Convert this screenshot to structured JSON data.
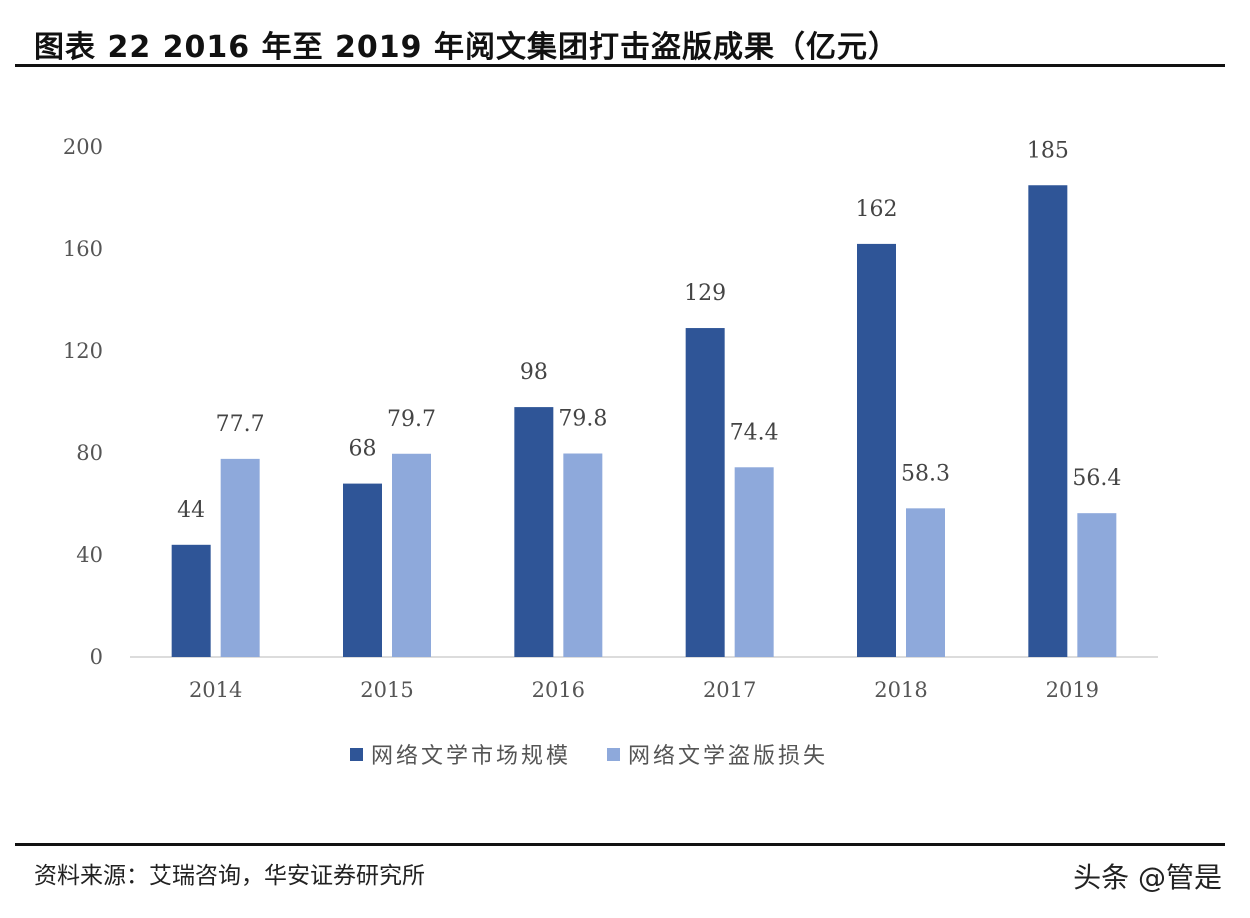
{
  "title": "图表 22 2016 年至 2019 年阅文集团打击盗版成果（亿元）",
  "source": "资料来源：艾瑞咨询，华安证券研究所",
  "watermark": "头条 @管是",
  "chart_data": {
    "type": "bar",
    "title": "图表 22 2016 年至 2019 年阅文集团打击盗版成果（亿元）",
    "xlabel": "",
    "ylabel": "",
    "categories": [
      "2014",
      "2015",
      "2016",
      "2017",
      "2018",
      "2019"
    ],
    "series": [
      {
        "name": "网络文学市场规模",
        "values": [
          44,
          68,
          98,
          129,
          162,
          185
        ],
        "color": "#2F5597"
      },
      {
        "name": "网络文学盗版损失",
        "values": [
          77.7,
          79.7,
          79.8,
          74.4,
          58.3,
          56.4
        ],
        "color": "#8EA9DB"
      }
    ],
    "ylim": [
      0,
      200
    ],
    "yticks": [
      "0",
      "40",
      "80",
      "120",
      "160",
      "200"
    ],
    "grid": false,
    "legend": "bottom"
  }
}
